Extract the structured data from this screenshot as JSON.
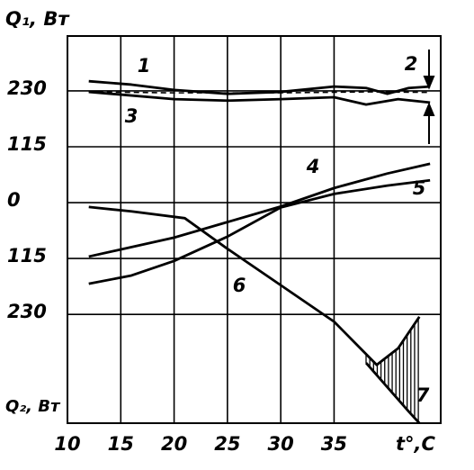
{
  "chart_data": {
    "type": "line",
    "y_label": "Q₁, Вт",
    "y_label_bottom": "Q₂, Вт",
    "x_label": "t°,C",
    "xlim": [
      10,
      45
    ],
    "ylim": [
      -454,
      343
    ],
    "xticks": [
      10,
      15,
      20,
      25,
      30,
      35
    ],
    "yticks": [
      230,
      115,
      0,
      {
        "value": -115,
        "label": "115"
      },
      {
        "value": -230,
        "label": "230"
      }
    ],
    "grid": true,
    "series": [
      {
        "name": "1",
        "color": "#000",
        "x": [
          12,
          16,
          20,
          25,
          30,
          35,
          38,
          40,
          42,
          44
        ],
        "values": [
          250,
          243,
          232,
          224,
          228,
          239,
          236,
          224,
          236,
          239
        ]
      },
      {
        "name": "2",
        "color": "#000",
        "dashed": true,
        "x": [
          12,
          20,
          30,
          38,
          44
        ],
        "values": [
          228,
          226,
          226,
          228,
          227
        ]
      },
      {
        "name": "3",
        "color": "#000",
        "x": [
          12,
          20,
          25,
          30,
          35,
          38,
          41,
          44
        ],
        "values": [
          228,
          213,
          210,
          213,
          217,
          202,
          213,
          206
        ]
      },
      {
        "name": "4",
        "color": "#000",
        "x": [
          12,
          20,
          30,
          35,
          40,
          44
        ],
        "values": [
          -111,
          -72,
          -8,
          30,
          60,
          80
        ]
      },
      {
        "name": "5",
        "color": "#000",
        "x": [
          12,
          16,
          20,
          25,
          30,
          35,
          40,
          44
        ],
        "values": [
          -167,
          -150,
          -120,
          -70,
          -10,
          18,
          35,
          46
        ]
      },
      {
        "name": "6",
        "color": "#000",
        "x": [
          12,
          16,
          21,
          25,
          30,
          35,
          39,
          41,
          43
        ],
        "values": [
          -9,
          -18,
          -32,
          -95,
          -170,
          -245,
          -334,
          -300,
          -235
        ]
      },
      {
        "name": "7",
        "color": "#000",
        "x": [
          38,
          40,
          42,
          43
        ],
        "values": [
          -330,
          -380,
          -430,
          -454
        ]
      }
    ]
  }
}
